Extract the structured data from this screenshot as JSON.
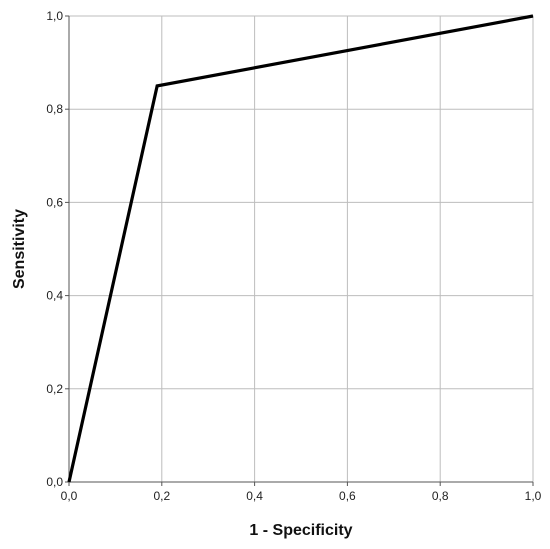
{
  "chart_data": {
    "type": "line",
    "title": "",
    "xlabel": "1 - Specificity",
    "ylabel": "Sensitivity",
    "xlim": [
      0,
      1
    ],
    "ylim": [
      0,
      1
    ],
    "grid": true,
    "x_ticks": [
      "0,0",
      "0,2",
      "0,4",
      "0,6",
      "0,8",
      "1,0"
    ],
    "y_ticks": [
      "0,0",
      "0,2",
      "0,4",
      "0,6",
      "0,8",
      "1,0"
    ],
    "series": [
      {
        "x": [
          0.0,
          0.19,
          1.0
        ],
        "y": [
          0.0,
          0.85,
          1.0
        ],
        "color": "#000000"
      }
    ]
  }
}
